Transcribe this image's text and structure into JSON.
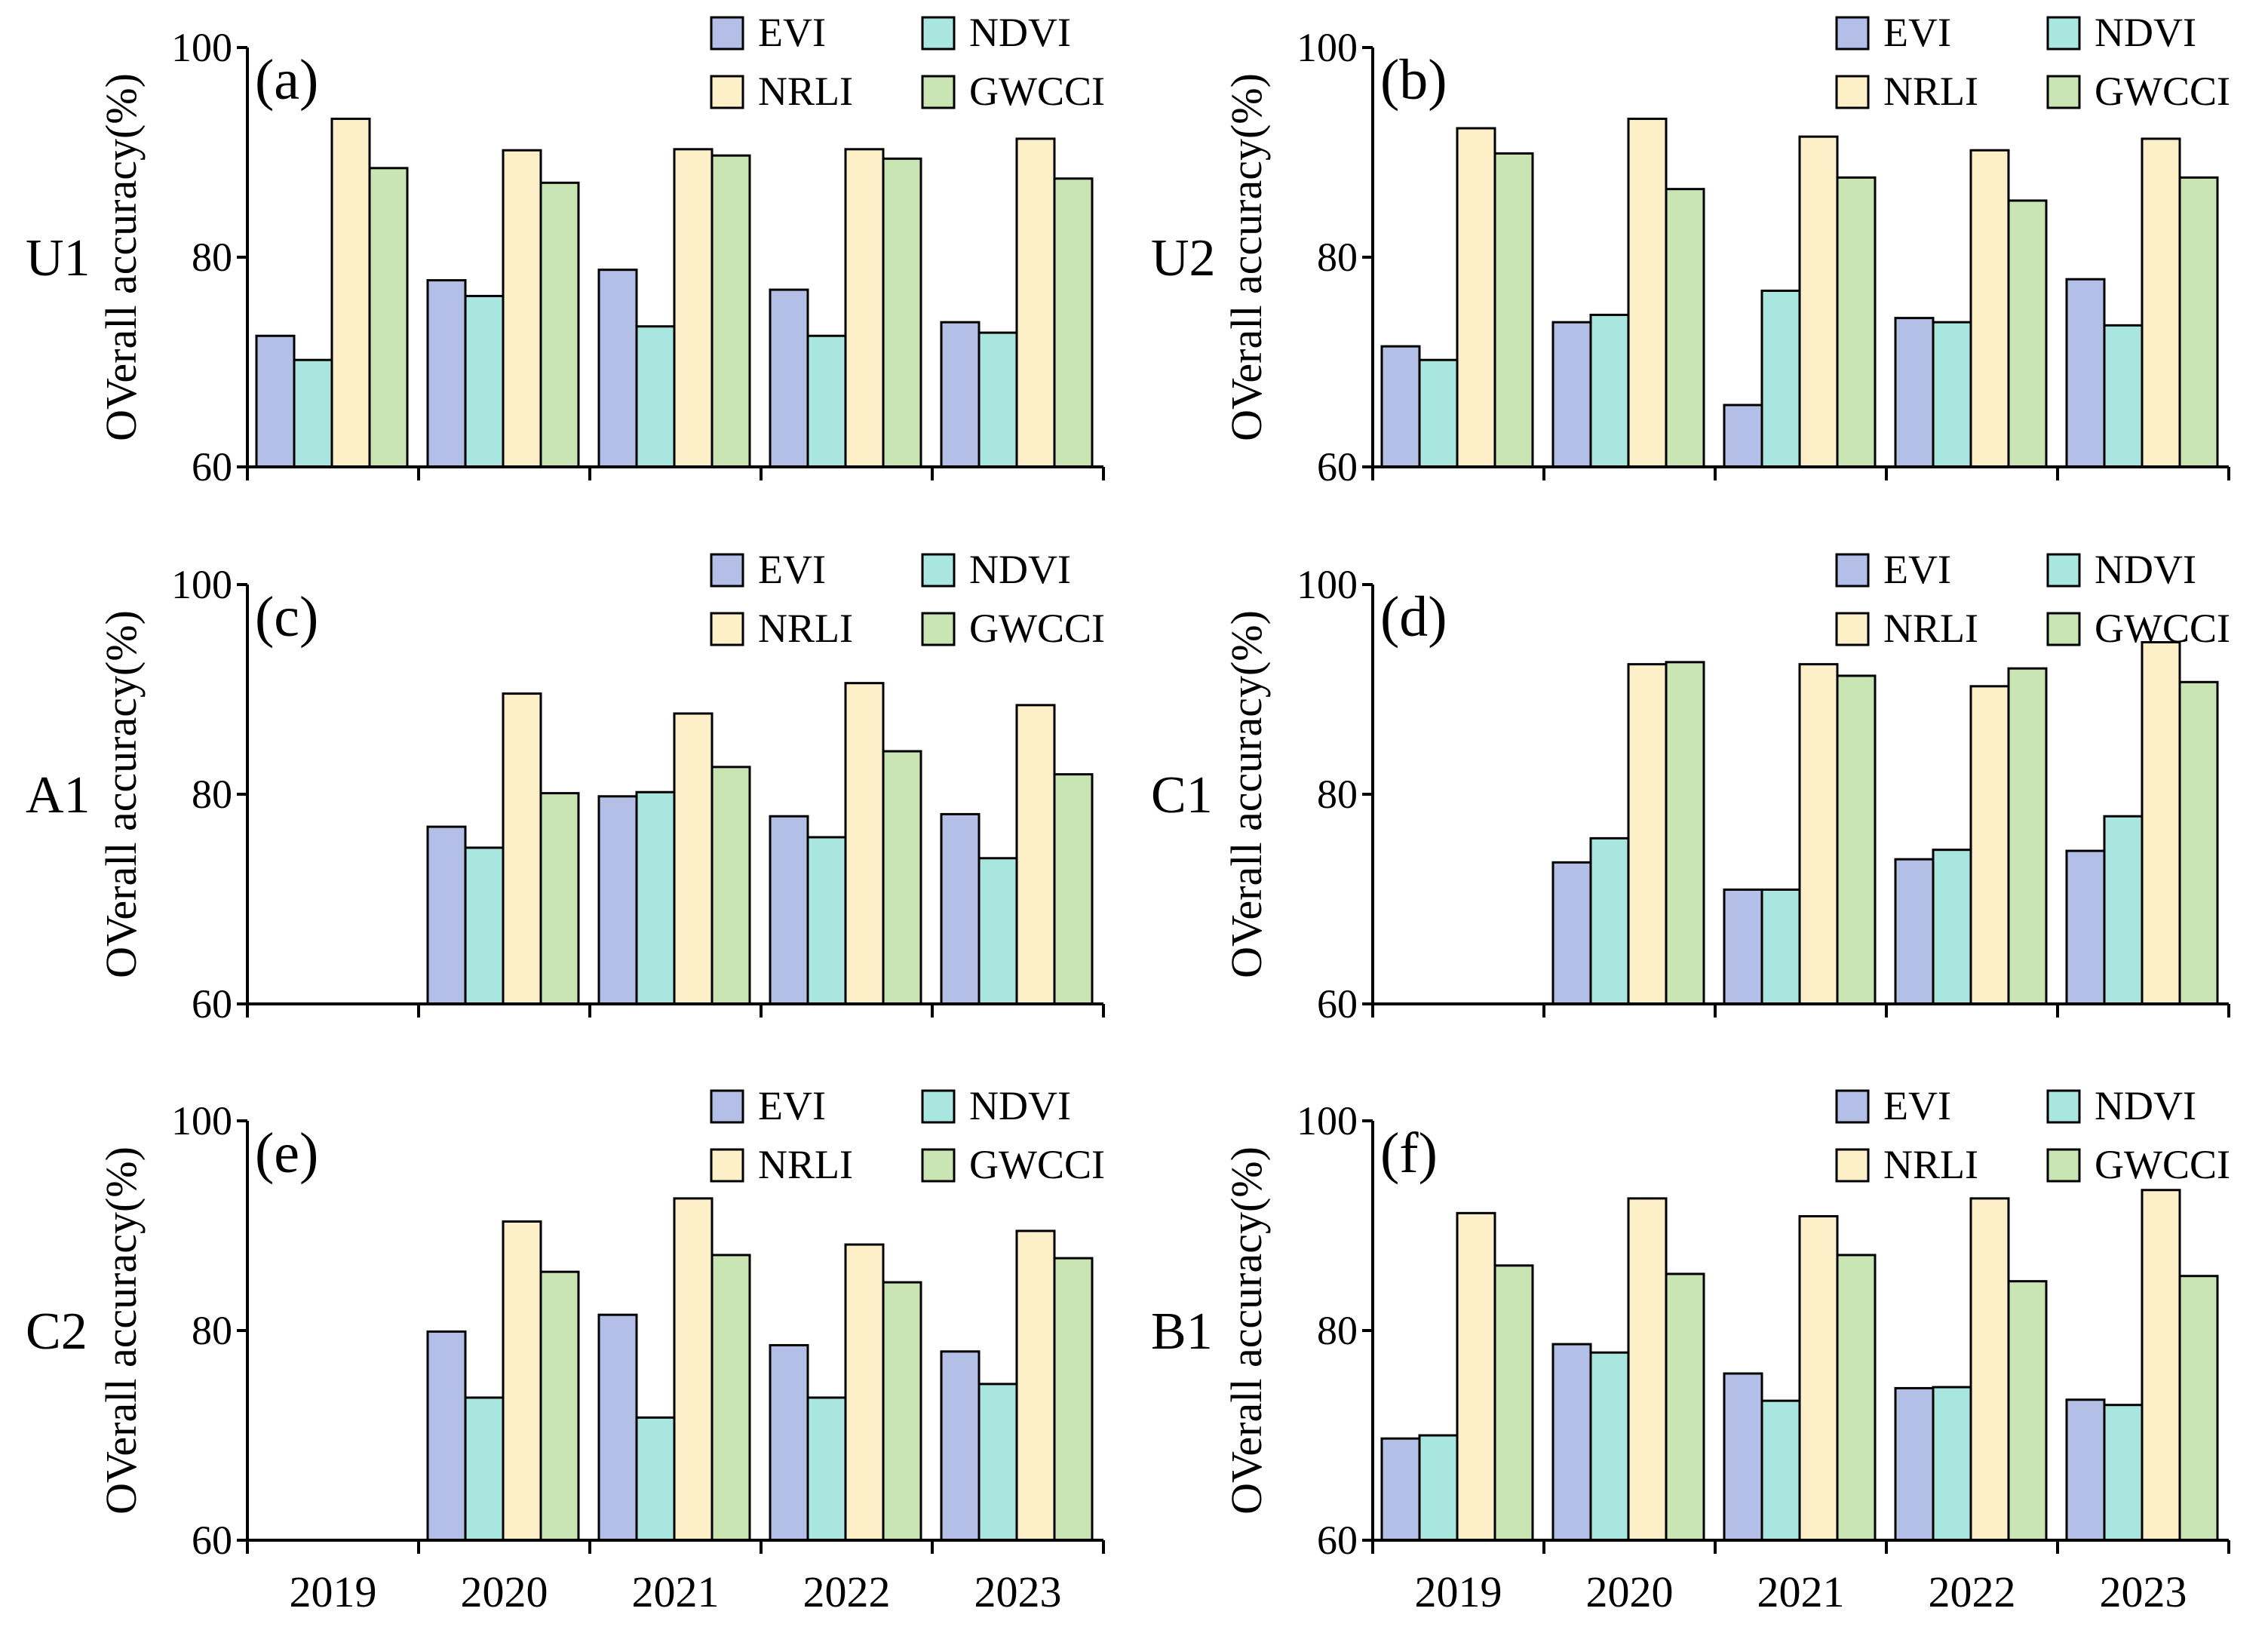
{
  "colors": {
    "EVI": "#b3bfe6",
    "NDVI": "#a8e6df",
    "NRLI": "#fdf0c8",
    "GWCCI": "#c9e5b4"
  },
  "legend": [
    "EVI",
    "NDVI",
    "NRLI",
    "GWCCI"
  ],
  "chart_data": [
    {
      "type": "bar",
      "panel": "(a)",
      "region": "U1",
      "ylabel": "OVerall accuracy(%)",
      "ylim": [
        60,
        100
      ],
      "yticks": [
        60,
        80,
        100
      ],
      "categories": [
        "2019",
        "2020",
        "2021",
        "2022",
        "2023"
      ],
      "series": [
        {
          "name": "EVI",
          "values": [
            72.5,
            77.8,
            78.8,
            76.9,
            73.8
          ]
        },
        {
          "name": "NDVI",
          "values": [
            70.2,
            76.3,
            73.4,
            72.5,
            72.8
          ]
        },
        {
          "name": "NRLI",
          "values": [
            93.2,
            90.2,
            90.3,
            90.3,
            91.3
          ]
        },
        {
          "name": "GWCCI",
          "values": [
            88.5,
            87.1,
            89.7,
            89.4,
            87.5
          ]
        }
      ]
    },
    {
      "type": "bar",
      "panel": "(b)",
      "region": "U2",
      "ylabel": "OVerall accuracy(%)",
      "ylim": [
        60,
        100
      ],
      "yticks": [
        60,
        80,
        100
      ],
      "categories": [
        "2019",
        "2020",
        "2021",
        "2022",
        "2023"
      ],
      "series": [
        {
          "name": "EVI",
          "values": [
            71.5,
            73.8,
            65.9,
            74.2,
            77.9
          ]
        },
        {
          "name": "NDVI",
          "values": [
            70.2,
            74.5,
            76.8,
            73.8,
            73.5
          ]
        },
        {
          "name": "NRLI",
          "values": [
            92.3,
            93.2,
            91.5,
            90.2,
            91.3
          ]
        },
        {
          "name": "GWCCI",
          "values": [
            89.9,
            86.5,
            87.6,
            85.4,
            87.6
          ]
        }
      ]
    },
    {
      "type": "bar",
      "panel": "(c)",
      "region": "A1",
      "ylabel": "OVerall accuracy(%)",
      "ylim": [
        60,
        100
      ],
      "yticks": [
        60,
        80,
        100
      ],
      "categories": [
        "2019",
        "2020",
        "2021",
        "2022",
        "2023"
      ],
      "series": [
        {
          "name": "EVI",
          "values": [
            null,
            76.9,
            79.8,
            77.9,
            78.1
          ]
        },
        {
          "name": "NDVI",
          "values": [
            null,
            74.9,
            80.2,
            75.9,
            73.9
          ]
        },
        {
          "name": "NRLI",
          "values": [
            null,
            89.6,
            87.7,
            90.6,
            88.5
          ]
        },
        {
          "name": "GWCCI",
          "values": [
            null,
            80.1,
            82.6,
            84.1,
            81.9
          ]
        }
      ]
    },
    {
      "type": "bar",
      "panel": "(d)",
      "region": "C1",
      "ylabel": "OVerall accuracy(%)",
      "ylim": [
        60,
        100
      ],
      "yticks": [
        60,
        80,
        100
      ],
      "categories": [
        "2019",
        "2020",
        "2021",
        "2022",
        "2023"
      ],
      "series": [
        {
          "name": "EVI",
          "values": [
            null,
            73.5,
            70.9,
            73.8,
            74.6
          ]
        },
        {
          "name": "NDVI",
          "values": [
            null,
            75.8,
            70.9,
            74.7,
            77.9
          ]
        },
        {
          "name": "NRLI",
          "values": [
            null,
            92.4,
            92.4,
            90.3,
            94.5
          ]
        },
        {
          "name": "GWCCI",
          "values": [
            null,
            92.6,
            91.3,
            92.0,
            90.7
          ]
        }
      ]
    },
    {
      "type": "bar",
      "panel": "(e)",
      "region": "C2",
      "ylabel": "OVerall accuracy(%)",
      "ylim": [
        60,
        100
      ],
      "yticks": [
        60,
        80,
        100
      ],
      "xlabel": "",
      "categories": [
        "2019",
        "2020",
        "2021",
        "2022",
        "2023"
      ],
      "series": [
        {
          "name": "EVI",
          "values": [
            null,
            79.9,
            81.5,
            78.6,
            78.0
          ]
        },
        {
          "name": "NDVI",
          "values": [
            null,
            73.6,
            71.7,
            73.6,
            74.9
          ]
        },
        {
          "name": "NRLI",
          "values": [
            null,
            90.4,
            92.6,
            88.2,
            89.5
          ]
        },
        {
          "name": "GWCCI",
          "values": [
            null,
            85.6,
            87.2,
            84.6,
            86.9
          ]
        }
      ]
    },
    {
      "type": "bar",
      "panel": "(f)",
      "region": "B1",
      "ylabel": "OVerall accuracy(%)",
      "ylim": [
        60,
        100
      ],
      "yticks": [
        60,
        80,
        100
      ],
      "xlabel": "",
      "categories": [
        "2019",
        "2020",
        "2021",
        "2022",
        "2023"
      ],
      "series": [
        {
          "name": "EVI",
          "values": [
            69.7,
            78.7,
            75.9,
            74.5,
            73.4
          ]
        },
        {
          "name": "NDVI",
          "values": [
            70.0,
            77.9,
            73.3,
            74.6,
            72.9
          ]
        },
        {
          "name": "NRLI",
          "values": [
            91.2,
            92.6,
            90.9,
            92.6,
            93.4
          ]
        },
        {
          "name": "GWCCI",
          "values": [
            86.2,
            85.4,
            87.2,
            84.7,
            85.2
          ]
        }
      ]
    }
  ]
}
